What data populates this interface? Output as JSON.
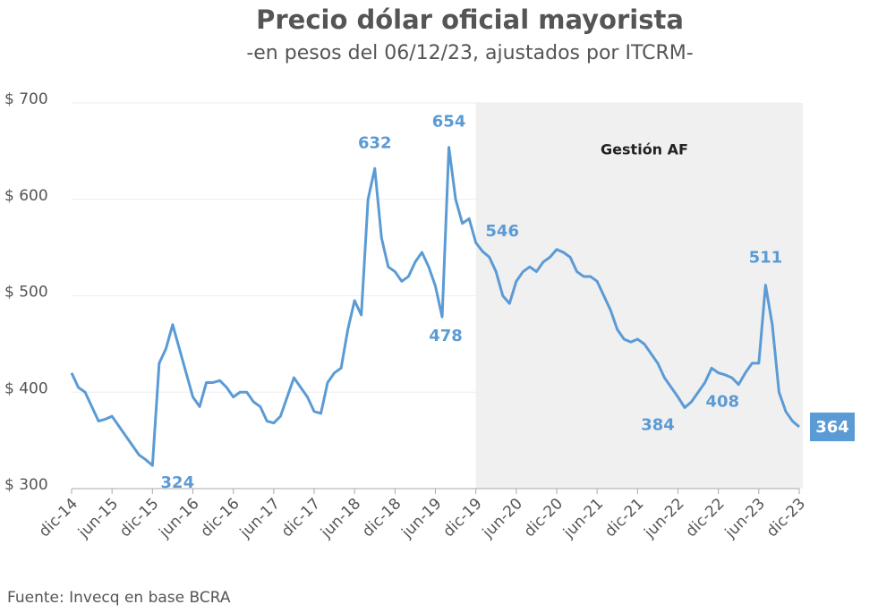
{
  "chart_data": {
    "type": "line",
    "title": "Precio dólar oficial mayorista",
    "subtitle": "-en pesos del 06/12/23, ajustados por ITCRM-",
    "source": "Fuente: Invecq en base BCRA",
    "region": {
      "label": "Gestión AF",
      "start": "2019-12",
      "end": "2023-12",
      "color": "#f0f0f0"
    },
    "x": [
      "2014-12",
      "2015-01",
      "2015-02",
      "2015-03",
      "2015-04",
      "2015-05",
      "2015-06",
      "2015-07",
      "2015-08",
      "2015-09",
      "2015-10",
      "2015-11",
      "2015-12",
      "2016-01",
      "2016-02",
      "2016-03",
      "2016-04",
      "2016-05",
      "2016-06",
      "2016-07",
      "2016-08",
      "2016-09",
      "2016-10",
      "2016-11",
      "2016-12",
      "2017-01",
      "2017-02",
      "2017-03",
      "2017-04",
      "2017-05",
      "2017-06",
      "2017-07",
      "2017-08",
      "2017-09",
      "2017-10",
      "2017-11",
      "2017-12",
      "2018-01",
      "2018-02",
      "2018-03",
      "2018-04",
      "2018-05",
      "2018-06",
      "2018-07",
      "2018-08",
      "2018-09",
      "2018-10",
      "2018-11",
      "2018-12",
      "2019-01",
      "2019-02",
      "2019-03",
      "2019-04",
      "2019-05",
      "2019-06",
      "2019-07",
      "2019-08",
      "2019-09",
      "2019-10",
      "2019-11",
      "2019-12",
      "2020-01",
      "2020-02",
      "2020-03",
      "2020-04",
      "2020-05",
      "2020-06",
      "2020-07",
      "2020-08",
      "2020-09",
      "2020-10",
      "2020-11",
      "2020-12",
      "2021-01",
      "2021-02",
      "2021-03",
      "2021-04",
      "2021-05",
      "2021-06",
      "2021-07",
      "2021-08",
      "2021-09",
      "2021-10",
      "2021-11",
      "2021-12",
      "2022-01",
      "2022-02",
      "2022-03",
      "2022-04",
      "2022-05",
      "2022-06",
      "2022-07",
      "2022-08",
      "2022-09",
      "2022-10",
      "2022-11",
      "2022-12",
      "2023-01",
      "2023-02",
      "2023-03",
      "2023-04",
      "2023-05",
      "2023-06",
      "2023-07",
      "2023-08",
      "2023-09",
      "2023-10",
      "2023-11",
      "2023-12"
    ],
    "series": [
      {
        "name": "Precio dólar oficial mayorista",
        "color": "#5b9bd5",
        "values": [
          420,
          405,
          400,
          385,
          370,
          372,
          375,
          365,
          355,
          345,
          335,
          330,
          324,
          430,
          445,
          470,
          445,
          420,
          395,
          385,
          410,
          410,
          412,
          405,
          395,
          400,
          400,
          390,
          385,
          370,
          368,
          375,
          395,
          415,
          405,
          395,
          380,
          378,
          410,
          420,
          425,
          465,
          495,
          480,
          600,
          632,
          560,
          530,
          525,
          515,
          520,
          535,
          545,
          530,
          510,
          478,
          654,
          600,
          575,
          580,
          555,
          546,
          540,
          525,
          500,
          492,
          515,
          525,
          530,
          525,
          535,
          540,
          548,
          545,
          540,
          525,
          520,
          520,
          515,
          500,
          485,
          465,
          455,
          452,
          455,
          450,
          440,
          430,
          415,
          405,
          395,
          384,
          390,
          400,
          410,
          425,
          420,
          418,
          415,
          408,
          420,
          430,
          430,
          511,
          470,
          400,
          380,
          370,
          364
        ]
      }
    ],
    "annotations": [
      {
        "x": "2015-12",
        "value": 324
      },
      {
        "x": "2018-09",
        "value": 632
      },
      {
        "x": "2019-08",
        "value": 654
      },
      {
        "x": "2019-07",
        "value": 478
      },
      {
        "x": "2020-01",
        "value": 546
      },
      {
        "x": "2022-07",
        "value": 384
      },
      {
        "x": "2023-03",
        "value": 408
      },
      {
        "x": "2023-07",
        "value": 511
      },
      {
        "x": "2023-12",
        "value": 364
      }
    ],
    "xlim": [
      "2014-12",
      "2023-12"
    ],
    "xticks": [
      {
        "value": "2014-12",
        "label": "dic-14"
      },
      {
        "value": "2015-06",
        "label": "jun-15"
      },
      {
        "value": "2015-12",
        "label": "dic-15"
      },
      {
        "value": "2016-06",
        "label": "jun-16"
      },
      {
        "value": "2016-12",
        "label": "dic-16"
      },
      {
        "value": "2017-06",
        "label": "jun-17"
      },
      {
        "value": "2017-12",
        "label": "dic-17"
      },
      {
        "value": "2018-06",
        "label": "jun-18"
      },
      {
        "value": "2018-12",
        "label": "dic-18"
      },
      {
        "value": "2019-06",
        "label": "jun-19"
      },
      {
        "value": "2019-12",
        "label": "dic-19"
      },
      {
        "value": "2020-06",
        "label": "jun-20"
      },
      {
        "value": "2020-12",
        "label": "dic-20"
      },
      {
        "value": "2021-06",
        "label": "jun-21"
      },
      {
        "value": "2021-12",
        "label": "dic-21"
      },
      {
        "value": "2022-06",
        "label": "jun-22"
      },
      {
        "value": "2022-12",
        "label": "dic-22"
      },
      {
        "value": "2023-06",
        "label": "jun-23"
      },
      {
        "value": "2023-12",
        "label": "dic-23"
      }
    ],
    "ylim": [
      300,
      700
    ],
    "yticks": [
      {
        "value": 300,
        "label": "$ 300"
      },
      {
        "value": 400,
        "label": "$ 400"
      },
      {
        "value": 500,
        "label": "$ 500"
      },
      {
        "value": 600,
        "label": "$ 600"
      },
      {
        "value": 700,
        "label": "$ 700"
      }
    ],
    "grid": true
  }
}
